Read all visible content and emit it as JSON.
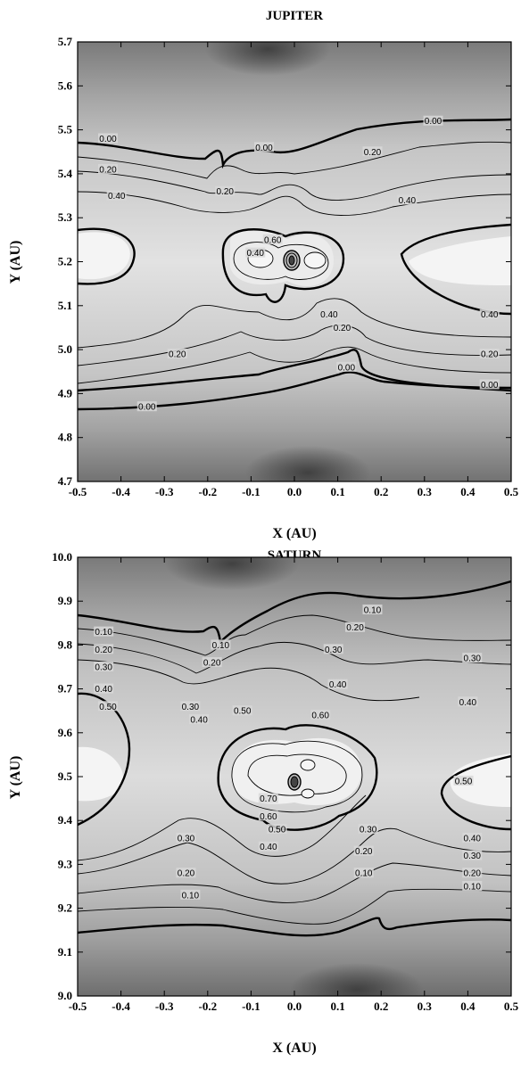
{
  "chart_data": [
    {
      "type": "contour",
      "title": "JUPITER",
      "xlabel": "X (AU)",
      "ylabel": "Y (AU)",
      "xlim": [
        -0.5,
        0.5
      ],
      "ylim": [
        4.7,
        5.7
      ],
      "xticks": [
        "-0.5",
        "-0.4",
        "-0.3",
        "-0.2",
        "-0.1",
        "0.0",
        "0.1",
        "0.2",
        "0.3",
        "0.4",
        "0.5"
      ],
      "yticks": [
        "4.7",
        "4.8",
        "4.9",
        "5.0",
        "5.1",
        "5.2",
        "5.3",
        "5.4",
        "5.5",
        "5.6",
        "5.7"
      ],
      "planet_position": [
        0.0,
        5.2
      ],
      "contour_levels": [
        0.0,
        0.2,
        0.4,
        0.6
      ],
      "contour_labels": [
        {
          "text": "0.00",
          "x": -0.43,
          "y": 5.48
        },
        {
          "text": "0.00",
          "x": -0.07,
          "y": 5.46
        },
        {
          "text": "0.00",
          "x": 0.32,
          "y": 5.52
        },
        {
          "text": "0.20",
          "x": -0.43,
          "y": 5.41
        },
        {
          "text": "0.20",
          "x": -0.16,
          "y": 5.36
        },
        {
          "text": "0.20",
          "x": 0.18,
          "y": 5.45
        },
        {
          "text": "0.40",
          "x": -0.41,
          "y": 5.35
        },
        {
          "text": "0.40",
          "x": 0.26,
          "y": 5.34
        },
        {
          "text": "0.60",
          "x": -0.05,
          "y": 5.25
        },
        {
          "text": "0.40",
          "x": -0.09,
          "y": 5.22
        },
        {
          "text": "0.40",
          "x": 0.08,
          "y": 5.08
        },
        {
          "text": "0.20",
          "x": 0.11,
          "y": 5.05
        },
        {
          "text": "0.40",
          "x": 0.45,
          "y": 5.08
        },
        {
          "text": "0.20",
          "x": -0.27,
          "y": 4.99
        },
        {
          "text": "0.20",
          "x": 0.45,
          "y": 4.99
        },
        {
          "text": "0.00",
          "x": 0.12,
          "y": 4.96
        },
        {
          "text": "0.00",
          "x": 0.45,
          "y": 4.92
        },
        {
          "text": "0.00",
          "x": -0.34,
          "y": 4.87
        }
      ]
    },
    {
      "type": "contour",
      "title": "SATURN",
      "xlabel": "X (AU)",
      "ylabel": "Y (AU)",
      "xlim": [
        -0.5,
        0.5
      ],
      "ylim": [
        9.0,
        10.0
      ],
      "xticks": [
        "-0.5",
        "-0.4",
        "-0.3",
        "-0.2",
        "-0.1",
        "0.0",
        "0.1",
        "0.2",
        "0.3",
        "0.4",
        "0.5"
      ],
      "yticks": [
        "9.0",
        "9.1",
        "9.2",
        "9.3",
        "9.4",
        "9.5",
        "9.6",
        "9.7",
        "9.8",
        "9.9",
        "10.0"
      ],
      "planet_position": [
        0.0,
        9.54
      ],
      "contour_levels": [
        0.1,
        0.2,
        0.3,
        0.4,
        0.5,
        0.6,
        0.7
      ],
      "contour_labels": [
        {
          "text": "0.10",
          "x": -0.44,
          "y": 9.83
        },
        {
          "text": "0.20",
          "x": -0.44,
          "y": 9.79
        },
        {
          "text": "0.30",
          "x": -0.44,
          "y": 9.75
        },
        {
          "text": "0.40",
          "x": -0.44,
          "y": 9.7
        },
        {
          "text": "0.50",
          "x": -0.43,
          "y": 9.66
        },
        {
          "text": "0.10",
          "x": -0.17,
          "y": 9.8
        },
        {
          "text": "0.20",
          "x": -0.19,
          "y": 9.76
        },
        {
          "text": "0.30",
          "x": -0.24,
          "y": 9.66
        },
        {
          "text": "0.40",
          "x": -0.22,
          "y": 9.63
        },
        {
          "text": "0.50",
          "x": -0.12,
          "y": 9.65
        },
        {
          "text": "0.10",
          "x": 0.18,
          "y": 9.88
        },
        {
          "text": "0.20",
          "x": 0.14,
          "y": 9.84
        },
        {
          "text": "0.30",
          "x": 0.09,
          "y": 9.79
        },
        {
          "text": "0.40",
          "x": 0.1,
          "y": 9.71
        },
        {
          "text": "0.60",
          "x": 0.06,
          "y": 9.64
        },
        {
          "text": "0.30",
          "x": 0.41,
          "y": 9.77
        },
        {
          "text": "0.40",
          "x": 0.4,
          "y": 9.67
        },
        {
          "text": "0.70",
          "x": -0.06,
          "y": 9.45
        },
        {
          "text": "0.60",
          "x": -0.06,
          "y": 9.41
        },
        {
          "text": "0.50",
          "x": -0.04,
          "y": 9.38
        },
        {
          "text": "0.40",
          "x": -0.06,
          "y": 9.34
        },
        {
          "text": "0.30",
          "x": -0.25,
          "y": 9.36
        },
        {
          "text": "0.20",
          "x": -0.25,
          "y": 9.28
        },
        {
          "text": "0.10",
          "x": -0.24,
          "y": 9.23
        },
        {
          "text": "0.30",
          "x": 0.17,
          "y": 9.38
        },
        {
          "text": "0.20",
          "x": 0.16,
          "y": 9.33
        },
        {
          "text": "0.10",
          "x": 0.16,
          "y": 9.28
        },
        {
          "text": "0.50",
          "x": 0.39,
          "y": 9.49
        },
        {
          "text": "0.40",
          "x": 0.41,
          "y": 9.36
        },
        {
          "text": "0.30",
          "x": 0.41,
          "y": 9.32
        },
        {
          "text": "0.20",
          "x": 0.41,
          "y": 9.28
        },
        {
          "text": "0.10",
          "x": 0.41,
          "y": 9.25
        }
      ]
    }
  ]
}
